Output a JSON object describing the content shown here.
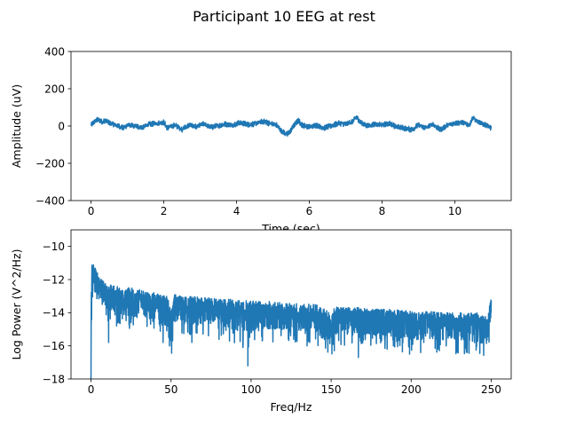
{
  "figure": {
    "suptitle": "Participant 10 EEG at rest"
  },
  "chart_data": [
    {
      "type": "line",
      "title": "",
      "xlabel": "Time (sec)",
      "ylabel": "Amplitude (uV)",
      "xlim": [
        -0.55,
        11.55
      ],
      "ylim": [
        -400,
        400
      ],
      "xticks": [
        0,
        2,
        4,
        6,
        8,
        10
      ],
      "yticks": [
        -400,
        -200,
        0,
        200,
        400
      ],
      "grid": false,
      "color": "#1f77b4",
      "series": [
        {
          "x_range": [
            0,
            11
          ],
          "points": [
            [
              0.0,
              5
            ],
            [
              0.1,
              25
            ],
            [
              0.2,
              35
            ],
            [
              0.3,
              22
            ],
            [
              0.4,
              30
            ],
            [
              0.5,
              18
            ],
            [
              0.6,
              10
            ],
            [
              0.7,
              5
            ],
            [
              0.8,
              -5
            ],
            [
              0.9,
              -10
            ],
            [
              1.0,
              5
            ],
            [
              1.2,
              0
            ],
            [
              1.4,
              -8
            ],
            [
              1.6,
              10
            ],
            [
              1.8,
              15
            ],
            [
              2.0,
              20
            ],
            [
              2.1,
              -10
            ],
            [
              2.3,
              5
            ],
            [
              2.5,
              -18
            ],
            [
              2.7,
              5
            ],
            [
              2.9,
              -5
            ],
            [
              3.1,
              12
            ],
            [
              3.3,
              -8
            ],
            [
              3.5,
              2
            ],
            [
              3.7,
              10
            ],
            [
              3.9,
              5
            ],
            [
              4.1,
              18
            ],
            [
              4.3,
              8
            ],
            [
              4.5,
              12
            ],
            [
              4.7,
              25
            ],
            [
              4.9,
              15
            ],
            [
              5.1,
              5
            ],
            [
              5.2,
              -20
            ],
            [
              5.3,
              -35
            ],
            [
              5.4,
              -45
            ],
            [
              5.5,
              -20
            ],
            [
              5.6,
              8
            ],
            [
              5.7,
              30
            ],
            [
              5.8,
              5
            ],
            [
              6.0,
              -5
            ],
            [
              6.2,
              5
            ],
            [
              6.4,
              -10
            ],
            [
              6.6,
              0
            ],
            [
              6.8,
              15
            ],
            [
              7.0,
              10
            ],
            [
              7.2,
              25
            ],
            [
              7.3,
              50
            ],
            [
              7.4,
              20
            ],
            [
              7.6,
              0
            ],
            [
              7.8,
              10
            ],
            [
              8.0,
              5
            ],
            [
              8.2,
              15
            ],
            [
              8.4,
              -5
            ],
            [
              8.6,
              -10
            ],
            [
              8.8,
              -20
            ],
            [
              9.0,
              5
            ],
            [
              9.2,
              -10
            ],
            [
              9.4,
              10
            ],
            [
              9.6,
              -20
            ],
            [
              9.8,
              5
            ],
            [
              10.0,
              15
            ],
            [
              10.2,
              20
            ],
            [
              10.4,
              5
            ],
            [
              10.5,
              45
            ],
            [
              10.6,
              25
            ],
            [
              10.8,
              10
            ],
            [
              11.0,
              -10
            ]
          ]
        }
      ]
    },
    {
      "type": "line",
      "title": "",
      "xlabel": "Freq/Hz",
      "ylabel": "Log Power (V^2/Hz)",
      "xlim": [
        -12.5,
        262.5
      ],
      "ylim": [
        -18,
        -9
      ],
      "xticks": [
        0,
        50,
        100,
        150,
        200,
        250
      ],
      "yticks": [
        -18,
        -16,
        -14,
        -12,
        -10
      ],
      "grid": false,
      "color": "#1f77b4",
      "series": [
        {
          "x_range": [
            0,
            250
          ],
          "envelope": [
            [
              0,
              -11.0,
              -18.0
            ],
            [
              1,
              -10.8,
              -14.0
            ],
            [
              5,
              -11.8,
              -13.5
            ],
            [
              10,
              -12.3,
              -14.5
            ],
            [
              20,
              -12.4,
              -15.0
            ],
            [
              30,
              -12.6,
              -15.0
            ],
            [
              40,
              -12.8,
              -15.2
            ],
            [
              48,
              -13.0,
              -16.0
            ],
            [
              50,
              -14.0,
              -16.8
            ],
            [
              52,
              -12.9,
              -15.0
            ],
            [
              60,
              -13.0,
              -15.5
            ],
            [
              70,
              -13.0,
              -15.6
            ],
            [
              80,
              -13.2,
              -15.4
            ],
            [
              90,
              -13.2,
              -16.0
            ],
            [
              100,
              -13.3,
              -16.2
            ],
            [
              110,
              -13.3,
              -15.8
            ],
            [
              120,
              -13.4,
              -15.9
            ],
            [
              130,
              -13.4,
              -15.9
            ],
            [
              140,
              -13.5,
              -16.0
            ],
            [
              148,
              -13.8,
              -16.5
            ],
            [
              150,
              -14.4,
              -17.0
            ],
            [
              152,
              -13.6,
              -16.0
            ],
            [
              160,
              -13.7,
              -16.0
            ],
            [
              170,
              -13.7,
              -16.0
            ],
            [
              180,
              -13.8,
              -16.2
            ],
            [
              190,
              -13.8,
              -16.3
            ],
            [
              200,
              -13.9,
              -16.5
            ],
            [
              210,
              -13.9,
              -16.4
            ],
            [
              220,
              -14.0,
              -16.5
            ],
            [
              230,
              -14.0,
              -16.5
            ],
            [
              240,
              -14.0,
              -16.6
            ],
            [
              248,
              -14.2,
              -16.8
            ],
            [
              249,
              -13.6,
              -16.0
            ],
            [
              250,
              -13.0,
              -15.0
            ]
          ],
          "dips": [
            [
              11,
              -15.8
            ],
            [
              16,
              -14.8
            ],
            [
              45,
              -15.8
            ],
            [
              49,
              -16.0
            ],
            [
              63,
              -15.8
            ],
            [
              80,
              -15.6
            ],
            [
              95,
              -16.0
            ],
            [
              98,
              -17.2
            ],
            [
              107,
              -15.7
            ],
            [
              135,
              -16.0
            ],
            [
              152,
              -16.3
            ],
            [
              167,
              -16.7
            ],
            [
              185,
              -16.2
            ],
            [
              199,
              -16.5
            ],
            [
              235,
              -16.4
            ]
          ]
        }
      ]
    }
  ]
}
